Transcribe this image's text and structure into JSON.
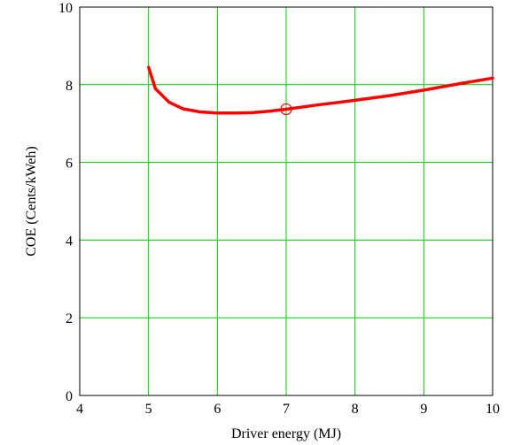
{
  "chart_data": {
    "type": "line",
    "title": "",
    "xlabel": "Driver energy (MJ)",
    "ylabel": "COE (Cents/kWeh)",
    "xlim": [
      4,
      10
    ],
    "ylim": [
      0,
      10
    ],
    "x_ticks": [
      "4",
      "5",
      "6",
      "7",
      "8",
      "9",
      "10"
    ],
    "y_ticks": [
      "0",
      "2",
      "4",
      "6",
      "8",
      "10"
    ],
    "grid": true,
    "grid_color": "#00cc00",
    "series": [
      {
        "color": "#ff0000",
        "x": [
          5.0,
          5.1,
          5.3,
          5.5,
          5.75,
          6.0,
          6.25,
          6.5,
          6.75,
          7.0,
          7.25,
          7.5,
          8.0,
          8.5,
          9.0,
          9.5,
          10.0
        ],
        "y": [
          8.45,
          7.9,
          7.55,
          7.38,
          7.3,
          7.27,
          7.27,
          7.28,
          7.32,
          7.37,
          7.43,
          7.49,
          7.6,
          7.72,
          7.86,
          8.02,
          8.17
        ]
      }
    ],
    "marker": {
      "x": 7.0,
      "y": 7.37,
      "shape": "open-circle",
      "color": "#ff0000"
    }
  }
}
